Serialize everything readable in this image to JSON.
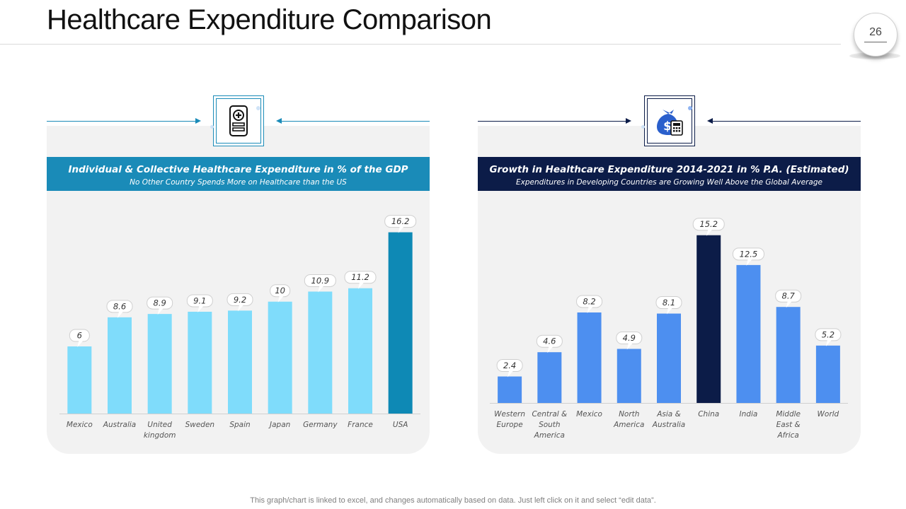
{
  "page": {
    "title": "Healthcare Expenditure Comparison",
    "page_number": "26",
    "footnote": "This graph/chart is linked to excel,  and changes automatically based on data. Just left click on it and select “edit data”."
  },
  "colors": {
    "left_band": "#1a8bb8",
    "right_band": "#0c1c48",
    "bar_light_blue": "#7fdcfb",
    "bar_teal": "#0e89b5",
    "bar_blue": "#4d8ff0",
    "bar_navy": "#0c1c48",
    "panel_bg": "#f2f2f2"
  },
  "panels": [
    {
      "icon": "mobile-medical-icon",
      "heading": "Individual  & Collective Healthcare Expenditure in % of the GDP",
      "subheading": "No Other Country Spends More on Healthcare than the US"
    },
    {
      "icon": "money-bag-calculator-icon",
      "heading": "Growth in Healthcare Expenditure 2014-2021 in % P.A. (Estimated)",
      "subheading": "Expenditures in Developing Countries are Growing Well Above the Global Average"
    }
  ],
  "chart_data": [
    {
      "type": "bar",
      "title": "Individual  & Collective Healthcare Expenditure in % of the GDP",
      "categories": [
        "Mexico",
        "Australia",
        "United kingdom",
        "Sweden",
        "Spain",
        "Japan",
        "Germany",
        "France",
        "USA"
      ],
      "category_lines": [
        [
          "Mexico"
        ],
        [
          "Australia"
        ],
        [
          "United",
          "kingdom"
        ],
        [
          "Sweden"
        ],
        [
          "Spain"
        ],
        [
          "Japan"
        ],
        [
          "Germany"
        ],
        [
          "France"
        ],
        [
          "USA"
        ]
      ],
      "values": [
        6,
        8.6,
        8.9,
        9.1,
        9.2,
        10,
        10.9,
        11.2,
        16.2
      ],
      "labels": [
        "6",
        "8.6",
        "8.9",
        "9.1",
        "9.2",
        "10",
        "10.9",
        "11.2",
        "16.2"
      ],
      "highlight": [
        false,
        false,
        false,
        false,
        false,
        false,
        false,
        false,
        true
      ],
      "ylim": [
        0,
        17.5
      ],
      "xlabel": "",
      "ylabel": "",
      "grid": false,
      "legend": "none"
    },
    {
      "type": "bar",
      "title": "Growth in Healthcare Expenditure 2014-2021 in % P.A. (Estimated)",
      "categories": [
        "Western Europe",
        "Central & South America",
        "Mexico",
        "North America",
        "Asia & Australia",
        "China",
        "India",
        "Middle East & Africa",
        "World"
      ],
      "category_lines": [
        [
          "Western",
          "Europe"
        ],
        [
          "Central &",
          "South",
          "America"
        ],
        [
          "Mexico"
        ],
        [
          "North",
          "America"
        ],
        [
          "Asia &",
          "Australia"
        ],
        [
          "China"
        ],
        [
          "India"
        ],
        [
          "Middle",
          "East &",
          "Africa"
        ],
        [
          "World"
        ]
      ],
      "values": [
        2.4,
        4.6,
        8.2,
        4.9,
        8.1,
        15.2,
        12.5,
        8.7,
        5.2
      ],
      "labels": [
        "2.4",
        "4.6",
        "8.2",
        "4.9",
        "8.1",
        "15.2",
        "12.5",
        "8.7",
        "5.2"
      ],
      "highlight": [
        false,
        false,
        false,
        false,
        false,
        true,
        false,
        false,
        false
      ],
      "ylim": [
        0,
        16.4
      ],
      "xlabel": "",
      "ylabel": "",
      "grid": false,
      "legend": "none"
    }
  ]
}
